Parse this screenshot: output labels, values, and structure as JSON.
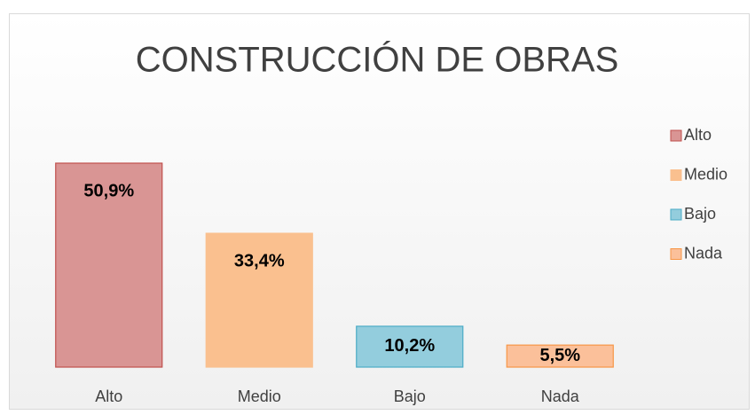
{
  "chart_data": {
    "type": "bar",
    "title": "CONSTRUCCIÓN DE OBRAS",
    "categories": [
      "Alto",
      "Medio",
      "Bajo",
      "Nada"
    ],
    "values": [
      50.9,
      33.4,
      10.2,
      5.5
    ],
    "value_labels": [
      "50,9%",
      "33,4%",
      "10,2%",
      "5,5%"
    ],
    "colors": [
      "#d99594",
      "#fac08f",
      "#93cddd",
      "#fbc09a"
    ],
    "border_colors": [
      "#c0504d",
      "#fac08f",
      "#4bacc6",
      "#f79646"
    ],
    "legend": "right"
  }
}
